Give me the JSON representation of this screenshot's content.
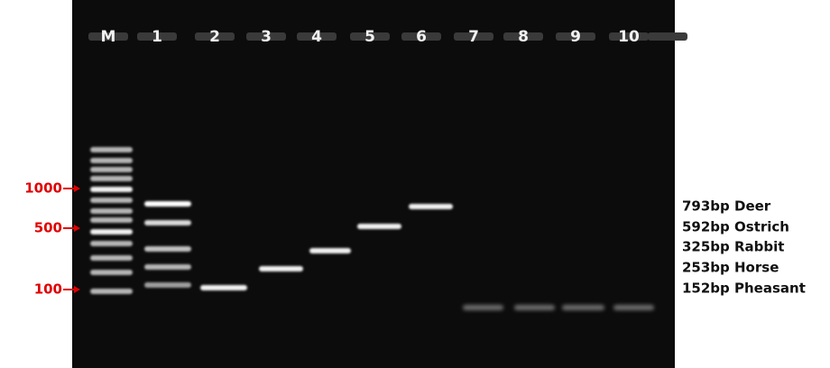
{
  "lanes": [
    "M",
    "1",
    "2",
    "3",
    "4",
    "5",
    "6",
    "7",
    "8",
    "9",
    "10"
  ],
  "size_markers": [
    "1000",
    "500",
    "100"
  ],
  "band_labels": [
    "793bp Deer",
    "592bp Ostrich",
    "325bp Rabbit",
    "253bp Horse",
    "152bp Pheasant"
  ]
}
